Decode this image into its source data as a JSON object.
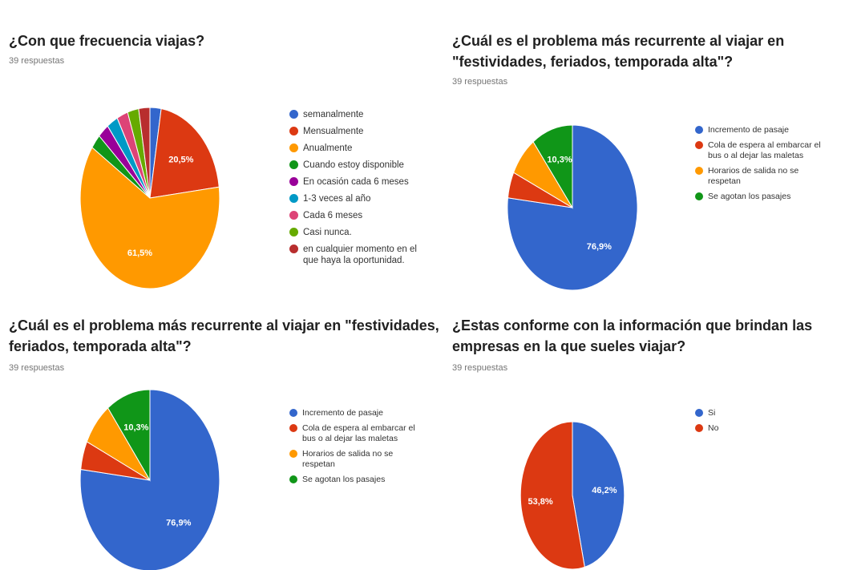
{
  "chart_data": [
    {
      "type": "pie",
      "title": "¿Con que frecuencia viajas?",
      "subtitle": "39 respuestas",
      "labels": [
        "semanalmente",
        "Mensualmente",
        "Anualmente",
        "Cuando estoy disponible",
        "En ocasión cada 6 meses",
        "1-3 veces al año",
        "Cada 6 meses",
        "Casi nunca.",
        "en cualquier momento en el que haya la oportunidad."
      ],
      "values": [
        2.6,
        20.5,
        61.5,
        2.6,
        2.6,
        2.6,
        2.6,
        2.6,
        2.6
      ],
      "data_labels": [
        "",
        "20,5%",
        "61,5%",
        "",
        "",
        "",
        "",
        "",
        ""
      ],
      "colors": [
        "#3366cc",
        "#dc3912",
        "#ff9900",
        "#109618",
        "#990099",
        "#0099c6",
        "#dd4477",
        "#66aa00",
        "#b82e2e"
      ],
      "legend_position": "right"
    },
    {
      "type": "pie",
      "title": "¿Cuál es el  problema más recurrente al viajar  en \"festividades, feriados, temporada alta\"?",
      "subtitle": "39 respuestas",
      "labels": [
        "Incremento de pasaje",
        "Cola de espera al embarcar el bus o al dejar las maletas",
        "Horarios de salida no se respetan",
        "Se agotan los pasajes"
      ],
      "values": [
        76.9,
        5.1,
        7.7,
        10.3
      ],
      "data_labels": [
        "76,9%",
        "",
        "",
        "10,3%"
      ],
      "colors": [
        "#3366cc",
        "#dc3912",
        "#ff9900",
        "#109618"
      ],
      "legend_position": "right"
    },
    {
      "type": "pie",
      "title": "¿Cuál es el  problema más recurrente al viajar  en \"festividades, feriados, temporada alta\"?",
      "subtitle": "39 respuestas",
      "labels": [
        "Incremento de pasaje",
        "Cola de espera al embarcar el bus o al dejar las maletas",
        "Horarios de salida no se respetan",
        "Se agotan los pasajes"
      ],
      "values": [
        76.9,
        5.1,
        7.7,
        10.3
      ],
      "data_labels": [
        "76,9%",
        "",
        "",
        "10,3%"
      ],
      "colors": [
        "#3366cc",
        "#dc3912",
        "#ff9900",
        "#109618"
      ],
      "legend_position": "right"
    },
    {
      "type": "pie",
      "title": "¿Estas conforme con la información que brindan las empresas  en la que sueles viajar?",
      "subtitle": "39 respuestas",
      "labels": [
        "Si",
        "No"
      ],
      "values": [
        46.2,
        53.8
      ],
      "data_labels": [
        "46,2%",
        "53,8%"
      ],
      "colors": [
        "#3366cc",
        "#dc3912"
      ],
      "legend_position": "right"
    }
  ]
}
